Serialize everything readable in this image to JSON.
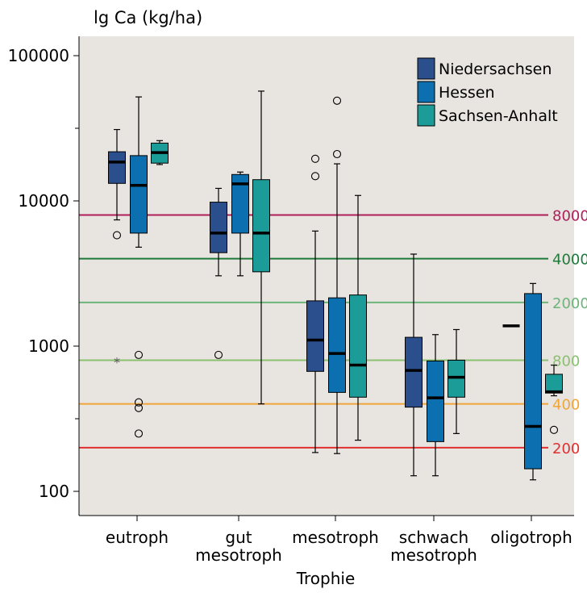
{
  "chart_data": {
    "type": "boxplot",
    "title": "lg Ca (kg/ha)",
    "xlabel": "Trophie",
    "ylabel": "",
    "yscale": "log",
    "ylim": [
      80,
      130000
    ],
    "yticks": [
      {
        "value": 100,
        "label": "100"
      },
      {
        "value": 1000,
        "label": "1000"
      },
      {
        "value": 10000,
        "label": "10000"
      },
      {
        "value": 100000,
        "label": "100000"
      }
    ],
    "minor_ticks": [
      316.2,
      31623
    ],
    "categories": [
      {
        "label_lines": [
          "eutroph"
        ]
      },
      {
        "label_lines": [
          "gut",
          "mesotroph"
        ]
      },
      {
        "label_lines": [
          "mesotroph"
        ]
      },
      {
        "label_lines": [
          "schwach",
          "mesotroph"
        ]
      },
      {
        "label_lines": [
          "oligotroph"
        ]
      }
    ],
    "legend": {
      "position": "top-right"
    },
    "series": [
      {
        "name": "Niedersachsen",
        "color": "#2B4E8C",
        "boxes": [
          {
            "category": 0,
            "whisker_low": 7400,
            "q1": 13200,
            "median": 18500,
            "q3": 21800,
            "whisker_high": 31000,
            "outliers": [
              5800
            ],
            "extremes": [
              790
            ]
          },
          {
            "category": 1,
            "whisker_low": 3050,
            "q1": 4400,
            "median": 6000,
            "q3": 9800,
            "whisker_high": 12200,
            "outliers": [
              870
            ],
            "extremes": []
          },
          {
            "category": 2,
            "whisker_low": 185,
            "q1": 670,
            "median": 1100,
            "q3": 2050,
            "whisker_high": 6200,
            "outliers": [
              14800,
              19500
            ],
            "extremes": []
          },
          {
            "category": 3,
            "whisker_low": 128,
            "q1": 380,
            "median": 680,
            "q3": 1150,
            "whisker_high": 4300,
            "outliers": [],
            "extremes": []
          },
          {
            "category": 4,
            "whisker_low": null,
            "q1": null,
            "median": 1380,
            "q3": null,
            "whisker_high": null,
            "outliers": [],
            "extremes": []
          }
        ]
      },
      {
        "name": "Hessen",
        "color": "#0C6FAF",
        "boxes": [
          {
            "category": 0,
            "whisker_low": 4800,
            "q1": 6000,
            "median": 12800,
            "q3": 20500,
            "whisker_high": 52000,
            "outliers": [
              870,
              410,
              375,
              250
            ],
            "extremes": []
          },
          {
            "category": 1,
            "whisker_low": 3050,
            "q1": 6000,
            "median": 13100,
            "q3": 15200,
            "whisker_high": 15800,
            "outliers": [],
            "extremes": []
          },
          {
            "category": 2,
            "whisker_low": 182,
            "q1": 480,
            "median": 890,
            "q3": 2150,
            "whisker_high": 18000,
            "outliers": [
              21000,
              49000
            ],
            "extremes": []
          },
          {
            "category": 3,
            "whisker_low": 128,
            "q1": 220,
            "median": 440,
            "q3": 790,
            "whisker_high": 1200,
            "outliers": [],
            "extremes": []
          },
          {
            "category": 4,
            "whisker_low": 120,
            "q1": 143,
            "median": 280,
            "q3": 2300,
            "whisker_high": 2700,
            "outliers": [],
            "extremes": []
          }
        ]
      },
      {
        "name": "Sachsen-Anhalt",
        "color": "#1C9C99",
        "boxes": [
          {
            "category": 0,
            "whisker_low": 17800,
            "q1": 18200,
            "median": 21500,
            "q3": 25000,
            "whisker_high": 26000,
            "outliers": [],
            "extremes": []
          },
          {
            "category": 1,
            "whisker_low": 400,
            "q1": 3250,
            "median": 6000,
            "q3": 14000,
            "whisker_high": 57000,
            "outliers": [],
            "extremes": []
          },
          {
            "category": 2,
            "whisker_low": 225,
            "q1": 445,
            "median": 740,
            "q3": 2250,
            "whisker_high": 10900,
            "outliers": [],
            "extremes": []
          },
          {
            "category": 3,
            "whisker_low": 250,
            "q1": 445,
            "median": 610,
            "q3": 800,
            "whisker_high": 1300,
            "outliers": [],
            "extremes": []
          },
          {
            "category": 4,
            "whisker_low": 455,
            "q1": 475,
            "median": 485,
            "q3": 640,
            "whisker_high": 740,
            "outliers": [
              265
            ],
            "extremes": []
          }
        ]
      }
    ],
    "reference_lines": [
      {
        "value": 8000,
        "label": "8000",
        "color": "#B01E5A"
      },
      {
        "value": 4000,
        "label": "4000",
        "color": "#1E7A3A"
      },
      {
        "value": 2000,
        "label": "2000",
        "color": "#6CB57A"
      },
      {
        "value": 800,
        "label": "800",
        "color": "#8CC071"
      },
      {
        "value": 400,
        "label": "400",
        "color": "#F0A53A"
      },
      {
        "value": 200,
        "label": "200",
        "color": "#E0302F"
      }
    ],
    "colors": {
      "background": "#E8E4E0",
      "axis": "#000000"
    }
  }
}
